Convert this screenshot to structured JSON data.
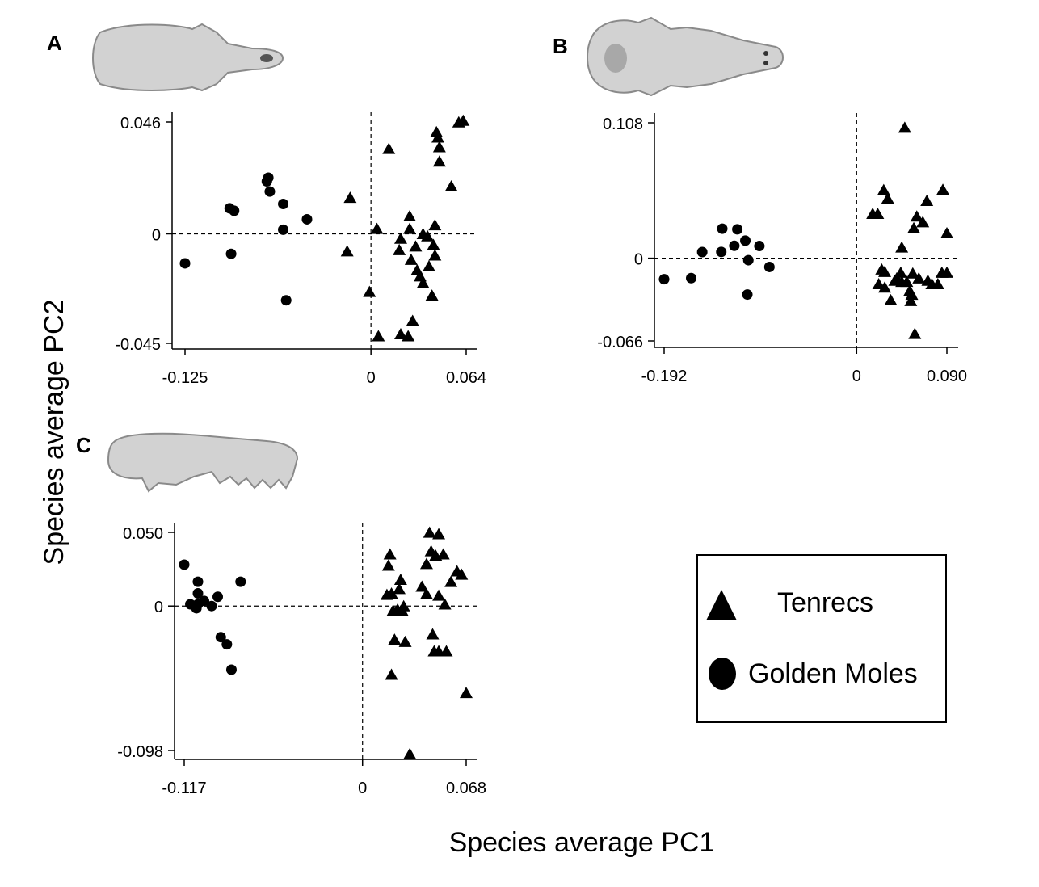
{
  "colors": {
    "marker": "#000000",
    "axis": "#000000",
    "skull_fill": "#d2d2d2",
    "skull_stroke": "#8a8a8a"
  },
  "icons": {
    "panel_a": "skull-dorsal-icon",
    "panel_b": "skull-ventral-icon",
    "panel_c": "mandible-lateral-icon"
  },
  "figure": {
    "xlabel": "Species average PC1",
    "ylabel": "Species average PC2"
  },
  "legend": {
    "placement": "bottom-right",
    "items": [
      {
        "label": "Tenrecs",
        "marker": "triangle"
      },
      {
        "label": "Golden Moles",
        "marker": "circle"
      }
    ]
  },
  "chart_data": [
    {
      "type": "scatter",
      "panel": "A",
      "xlim": [
        -0.125,
        0.064
      ],
      "ylim": [
        -0.045,
        0.046
      ],
      "xticks": [
        "-0.125",
        "0",
        "0.064"
      ],
      "yticks": [
        "0.046",
        "0",
        "-0.045"
      ],
      "grid": false,
      "reference_lines": "dashed at x=0 and y=0",
      "series": [
        {
          "name": "Golden Moles",
          "marker": "circle",
          "points": [
            [
              -0.125,
              -0.0121
            ],
            [
              -0.095,
              0.0105
            ],
            [
              -0.092,
              0.0095
            ],
            [
              -0.094,
              -0.0082
            ],
            [
              -0.069,
              0.0231
            ],
            [
              -0.07,
              0.0216
            ],
            [
              -0.068,
              0.0174
            ],
            [
              -0.059,
              0.0123
            ],
            [
              -0.059,
              0.0017
            ],
            [
              -0.043,
              0.006
            ],
            [
              -0.057,
              -0.0273
            ]
          ]
        },
        {
          "name": "Tenrecs",
          "marker": "triangle",
          "points": [
            [
              -0.014,
              0.0149
            ],
            [
              -0.016,
              -0.0071
            ],
            [
              -0.001,
              -0.0238
            ],
            [
              0.012,
              0.035
            ],
            [
              0.004,
              0.0021
            ],
            [
              0.005,
              -0.042
            ],
            [
              0.02,
              -0.0412
            ],
            [
              0.025,
              -0.042
            ],
            [
              0.026,
              0.0073
            ],
            [
              0.026,
              0.0021
            ],
            [
              0.02,
              -0.0019
            ],
            [
              0.019,
              -0.0066
            ],
            [
              0.027,
              -0.0106
            ],
            [
              0.03,
              -0.0051
            ],
            [
              0.031,
              -0.0149
            ],
            [
              0.033,
              -0.0174
            ],
            [
              0.035,
              -0.0202
            ],
            [
              0.038,
              -0.0009
            ],
            [
              0.035,
              0.0
            ],
            [
              0.039,
              -0.0133
            ],
            [
              0.043,
              -0.0088
            ],
            [
              0.042,
              -0.0045
            ],
            [
              0.043,
              0.0036
            ],
            [
              0.041,
              -0.0253
            ],
            [
              0.028,
              -0.0357
            ],
            [
              0.044,
              0.0419
            ],
            [
              0.045,
              0.0397
            ],
            [
              0.046,
              0.0357
            ],
            [
              0.046,
              0.0298
            ],
            [
              0.054,
              0.0196
            ],
            [
              0.059,
              0.0459
            ],
            [
              0.062,
              0.0466
            ]
          ]
        }
      ]
    },
    {
      "type": "scatter",
      "panel": "B",
      "xlim": [
        -0.192,
        0.09
      ],
      "ylim": [
        -0.066,
        0.108
      ],
      "xticks": [
        "-0.192",
        "0",
        "0.090"
      ],
      "yticks": [
        "0.108",
        "0",
        "-0.066"
      ],
      "grid": false,
      "reference_lines": "dashed at x=0 and y=0",
      "series": [
        {
          "name": "Golden Moles",
          "marker": "circle",
          "points": [
            [
              -0.192,
              -0.0168
            ],
            [
              -0.165,
              -0.0159
            ],
            [
              -0.154,
              0.0049
            ],
            [
              -0.135,
              0.005
            ],
            [
              -0.134,
              0.0235
            ],
            [
              -0.119,
              0.023
            ],
            [
              -0.122,
              0.0099
            ],
            [
              -0.111,
              0.014
            ],
            [
              -0.108,
              -0.0016
            ],
            [
              -0.097,
              0.0097
            ],
            [
              -0.087,
              -0.007
            ],
            [
              -0.109,
              -0.029
            ]
          ]
        },
        {
          "name": "Tenrecs",
          "marker": "triangle",
          "points": [
            [
              0.016,
              0.0355
            ],
            [
              0.021,
              0.0355
            ],
            [
              0.027,
              0.0544
            ],
            [
              0.031,
              0.0477
            ],
            [
              0.025,
              -0.0089
            ],
            [
              0.028,
              -0.0108
            ],
            [
              0.022,
              -0.0206
            ],
            [
              0.028,
              -0.0233
            ],
            [
              0.034,
              -0.0334
            ],
            [
              0.038,
              -0.0178
            ],
            [
              0.04,
              -0.016
            ],
            [
              0.045,
              -0.0187
            ],
            [
              0.044,
              -0.0115
            ],
            [
              0.045,
              0.0087
            ],
            [
              0.048,
              0.1042
            ],
            [
              0.05,
              -0.0187
            ],
            [
              0.053,
              -0.026
            ],
            [
              0.054,
              -0.034
            ],
            [
              0.055,
              -0.029
            ],
            [
              0.056,
              -0.012
            ],
            [
              0.057,
              0.0241
            ],
            [
              0.058,
              -0.0603
            ],
            [
              0.06,
              0.0334
            ],
            [
              0.062,
              -0.016
            ],
            [
              0.066,
              0.0288
            ],
            [
              0.07,
              0.0458
            ],
            [
              0.071,
              -0.0178
            ],
            [
              0.075,
              -0.0206
            ],
            [
              0.081,
              -0.0206
            ],
            [
              0.085,
              -0.0115
            ],
            [
              0.09,
              -0.0115
            ],
            [
              0.086,
              0.0547
            ],
            [
              0.09,
              0.02
            ]
          ]
        }
      ]
    },
    {
      "type": "scatter",
      "panel": "C",
      "xlim": [
        -0.117,
        0.068
      ],
      "ylim": [
        -0.098,
        0.05
      ],
      "xticks": [
        "-0.117",
        "0",
        "0.068"
      ],
      "yticks": [
        "0.050",
        "0",
        "-0.098"
      ],
      "grid": false,
      "reference_lines": "dashed at x=0 and y=0",
      "series": [
        {
          "name": "Golden Moles",
          "marker": "circle",
          "points": [
            [
              -0.117,
              0.0281
            ],
            [
              -0.113,
              0.0012
            ],
            [
              -0.108,
              0.0012
            ],
            [
              -0.109,
              -0.0015
            ],
            [
              -0.108,
              0.0165
            ],
            [
              -0.108,
              0.0086
            ],
            [
              -0.104,
              0.0035
            ],
            [
              -0.099,
              0.0
            ],
            [
              -0.095,
              0.0063
            ],
            [
              -0.093,
              -0.0211
            ],
            [
              -0.089,
              -0.026
            ],
            [
              -0.086,
              -0.0432
            ],
            [
              -0.08,
              0.0165
            ]
          ]
        },
        {
          "name": "Tenrecs",
          "marker": "triangle",
          "points": [
            [
              0.016,
              0.0077
            ],
            [
              0.017,
              0.0275
            ],
            [
              0.018,
              0.0352
            ],
            [
              0.019,
              -0.0465
            ],
            [
              0.019,
              0.0086
            ],
            [
              0.02,
              -0.0032
            ],
            [
              0.021,
              -0.0227
            ],
            [
              0.023,
              -0.0023
            ],
            [
              0.024,
              0.0117
            ],
            [
              0.025,
              0.0179
            ],
            [
              0.026,
              -0.0032
            ],
            [
              0.027,
              0.0
            ],
            [
              0.028,
              -0.0242
            ],
            [
              0.031,
              -0.1003
            ],
            [
              0.039,
              0.0133
            ],
            [
              0.042,
              0.0287
            ],
            [
              0.042,
              0.0082
            ],
            [
              0.044,
              0.0499
            ],
            [
              0.045,
              0.0373
            ],
            [
              0.046,
              -0.0191
            ],
            [
              0.047,
              -0.0306
            ],
            [
              0.048,
              0.0343
            ],
            [
              0.05,
              0.0489
            ],
            [
              0.05,
              0.0072
            ],
            [
              0.05,
              -0.0306
            ],
            [
              0.053,
              0.0352
            ],
            [
              0.054,
              0.0012
            ],
            [
              0.055,
              -0.0306
            ],
            [
              0.058,
              0.0165
            ],
            [
              0.062,
              0.0237
            ],
            [
              0.065,
              0.0214
            ],
            [
              0.068,
              -0.0589
            ]
          ]
        }
      ]
    }
  ]
}
